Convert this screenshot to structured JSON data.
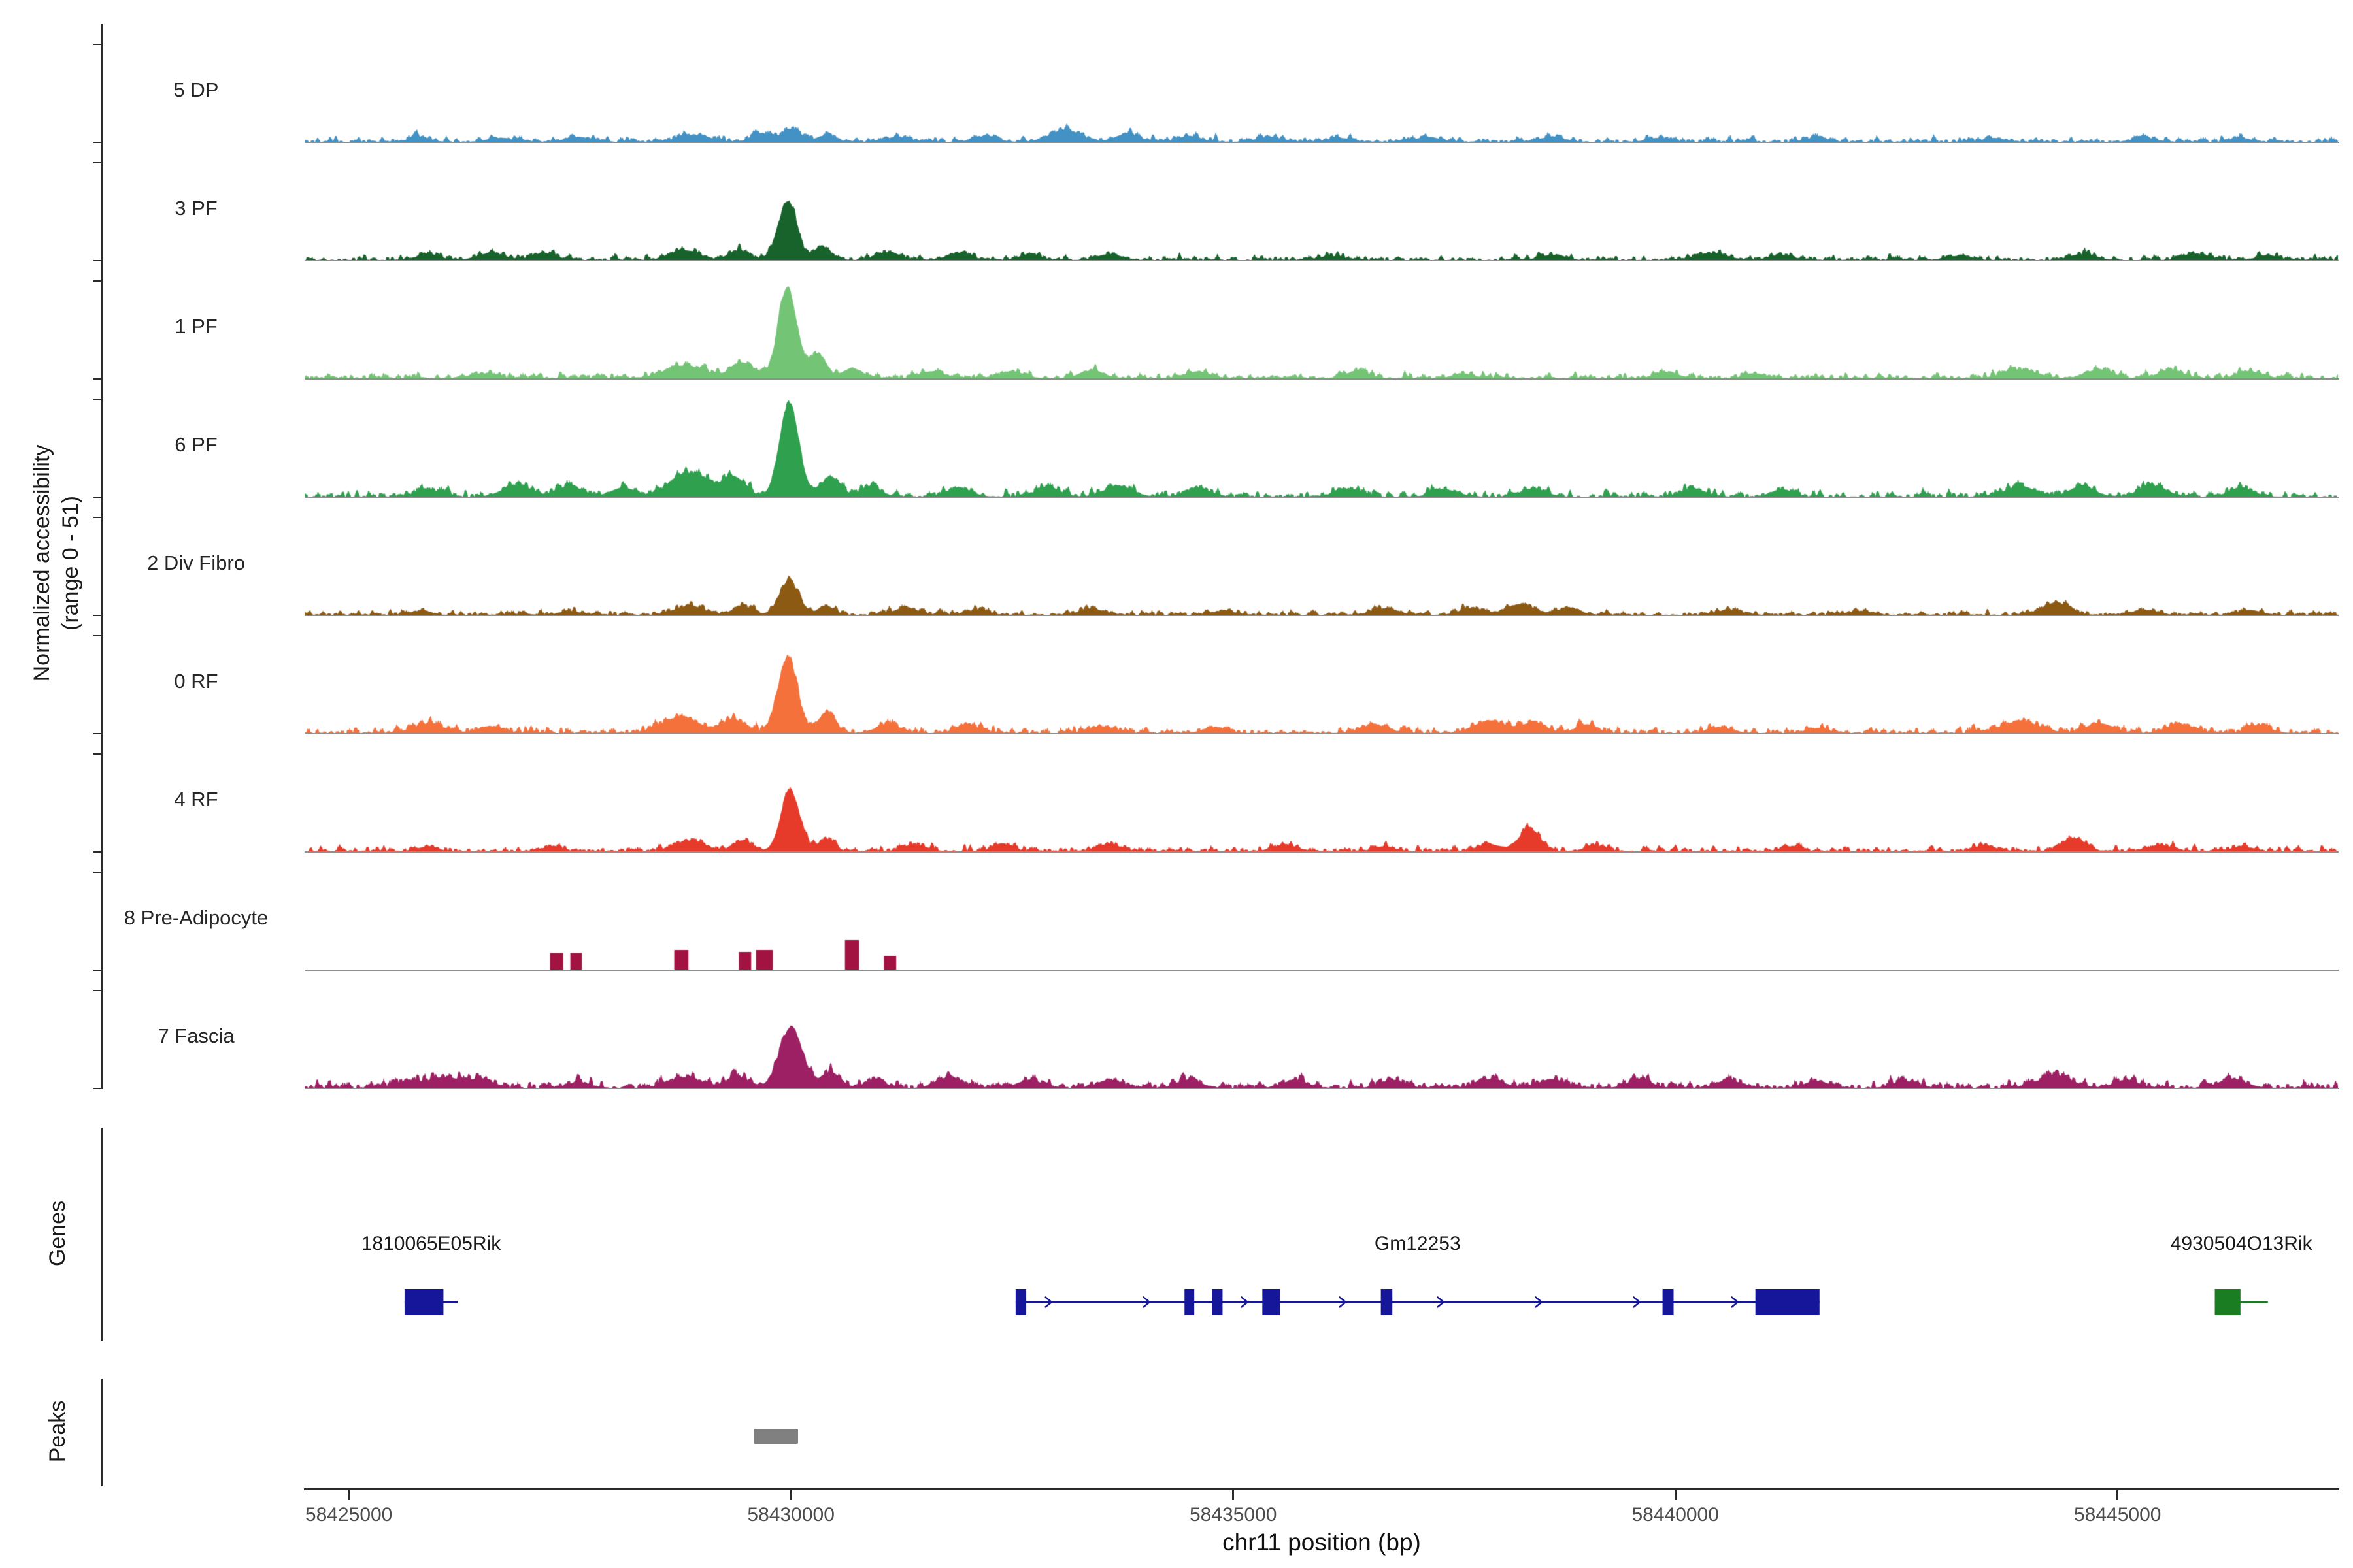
{
  "figure": {
    "y_axis_title_line1": "Normalized accessibility",
    "y_axis_title_line2": "(range 0 - 51)",
    "genes_section_label": "Genes",
    "peaks_section_label": "Peaks",
    "x_axis_title": "chr11 position (bp)"
  },
  "chart_data": {
    "type": "area",
    "subtype": "genome-accessibility-tracks",
    "chromosome": "chr11",
    "value_range": [
      0,
      51
    ],
    "x_domain": [
      58424500,
      58447500
    ],
    "x_ticks": [
      58425000,
      58430000,
      58435000,
      58440000,
      58445000
    ],
    "x_tick_labels": [
      "58425000",
      "58430000",
      "58435000",
      "58440000",
      "58445000"
    ],
    "tracks": [
      {
        "label": "5 DP",
        "color": "#4292c6",
        "style": "area",
        "noise": 0.022,
        "peaks": [
          [
            58425800,
            250,
            0.05
          ],
          [
            58426700,
            300,
            0.04
          ],
          [
            58427600,
            300,
            0.05
          ],
          [
            58428900,
            400,
            0.07
          ],
          [
            58429650,
            220,
            0.09
          ],
          [
            58430000,
            240,
            0.13
          ],
          [
            58430400,
            200,
            0.07
          ],
          [
            58431200,
            300,
            0.05
          ],
          [
            58432200,
            280,
            0.06
          ],
          [
            58433100,
            380,
            0.12
          ],
          [
            58433800,
            300,
            0.08
          ],
          [
            58434500,
            260,
            0.06
          ],
          [
            58435400,
            300,
            0.05
          ],
          [
            58436200,
            260,
            0.04
          ],
          [
            58437200,
            300,
            0.05
          ],
          [
            58438600,
            300,
            0.05
          ],
          [
            58439800,
            260,
            0.04
          ],
          [
            58441600,
            280,
            0.04
          ],
          [
            58443600,
            260,
            0.04
          ],
          [
            58445300,
            260,
            0.04
          ],
          [
            58446400,
            220,
            0.04
          ]
        ]
      },
      {
        "label": "3 PF",
        "color": "#17632b",
        "style": "area",
        "noise": 0.022,
        "peaks": [
          [
            58425900,
            280,
            0.06
          ],
          [
            58426600,
            320,
            0.07
          ],
          [
            58427200,
            300,
            0.07
          ],
          [
            58428800,
            350,
            0.1
          ],
          [
            58429400,
            240,
            0.1
          ],
          [
            58429960,
            230,
            0.6
          ],
          [
            58430350,
            200,
            0.14
          ],
          [
            58431100,
            300,
            0.08
          ],
          [
            58431900,
            300,
            0.07
          ],
          [
            58432700,
            260,
            0.06
          ],
          [
            58433600,
            300,
            0.06
          ],
          [
            58436100,
            300,
            0.04
          ],
          [
            58438600,
            300,
            0.05
          ],
          [
            58440400,
            400,
            0.07
          ],
          [
            58441200,
            300,
            0.05
          ],
          [
            58443200,
            300,
            0.04
          ],
          [
            58444600,
            320,
            0.06
          ],
          [
            58445900,
            320,
            0.06
          ],
          [
            58446700,
            260,
            0.05
          ]
        ]
      },
      {
        "label": "1 PF",
        "color": "#74c476",
        "style": "area",
        "noise": 0.024,
        "peaks": [
          [
            58426500,
            300,
            0.05
          ],
          [
            58428800,
            500,
            0.13
          ],
          [
            58429450,
            280,
            0.16
          ],
          [
            58429960,
            230,
            0.93
          ],
          [
            58430300,
            200,
            0.25
          ],
          [
            58430700,
            240,
            0.1
          ],
          [
            58431600,
            300,
            0.07
          ],
          [
            58432500,
            300,
            0.07
          ],
          [
            58433400,
            300,
            0.08
          ],
          [
            58434600,
            300,
            0.07
          ],
          [
            58436400,
            300,
            0.07
          ],
          [
            58437600,
            260,
            0.05
          ],
          [
            58439900,
            300,
            0.06
          ],
          [
            58440900,
            260,
            0.05
          ],
          [
            58443900,
            400,
            0.09
          ],
          [
            58444800,
            320,
            0.09
          ],
          [
            58445600,
            320,
            0.08
          ],
          [
            58446500,
            300,
            0.07
          ]
        ]
      },
      {
        "label": "6 PF",
        "color": "#2ea04e",
        "style": "area",
        "noise": 0.028,
        "peaks": [
          [
            58425900,
            300,
            0.07
          ],
          [
            58426900,
            350,
            0.12
          ],
          [
            58427500,
            300,
            0.11
          ],
          [
            58428100,
            300,
            0.09
          ],
          [
            58428850,
            450,
            0.24
          ],
          [
            58429350,
            280,
            0.2
          ],
          [
            58429980,
            240,
            0.96
          ],
          [
            58430450,
            240,
            0.2
          ],
          [
            58430900,
            240,
            0.11
          ],
          [
            58431900,
            300,
            0.09
          ],
          [
            58432900,
            300,
            0.09
          ],
          [
            58433700,
            340,
            0.11
          ],
          [
            58434600,
            300,
            0.09
          ],
          [
            58436300,
            300,
            0.08
          ],
          [
            58437400,
            300,
            0.07
          ],
          [
            58438400,
            300,
            0.08
          ],
          [
            58440200,
            300,
            0.08
          ],
          [
            58441200,
            260,
            0.07
          ],
          [
            58443900,
            340,
            0.11
          ],
          [
            58444600,
            300,
            0.11
          ],
          [
            58445400,
            340,
            0.11
          ],
          [
            58446400,
            300,
            0.09
          ]
        ]
      },
      {
        "label": "2 Div Fibro",
        "color": "#8d5a13",
        "style": "area",
        "noise": 0.02,
        "peaks": [
          [
            58425800,
            240,
            0.04
          ],
          [
            58427500,
            240,
            0.04
          ],
          [
            58428850,
            340,
            0.09
          ],
          [
            58429450,
            240,
            0.09
          ],
          [
            58429980,
            240,
            0.34
          ],
          [
            58430400,
            200,
            0.09
          ],
          [
            58431300,
            300,
            0.07
          ],
          [
            58432100,
            260,
            0.05
          ],
          [
            58433400,
            300,
            0.06
          ],
          [
            58434900,
            260,
            0.04
          ],
          [
            58436700,
            300,
            0.06
          ],
          [
            58437700,
            300,
            0.07
          ],
          [
            58438250,
            340,
            0.11
          ],
          [
            58438800,
            260,
            0.07
          ],
          [
            58440600,
            300,
            0.05
          ],
          [
            58442100,
            260,
            0.04
          ],
          [
            58444300,
            340,
            0.12
          ],
          [
            58445300,
            300,
            0.05
          ],
          [
            58446500,
            260,
            0.05
          ]
        ]
      },
      {
        "label": "0 RF",
        "color": "#f4713c",
        "style": "area",
        "noise": 0.028,
        "peaks": [
          [
            58425900,
            400,
            0.09
          ],
          [
            58426600,
            300,
            0.07
          ],
          [
            58428750,
            480,
            0.16
          ],
          [
            58429350,
            280,
            0.14
          ],
          [
            58429960,
            240,
            0.75
          ],
          [
            58430400,
            220,
            0.2
          ],
          [
            58431100,
            300,
            0.09
          ],
          [
            58432000,
            300,
            0.08
          ],
          [
            58433500,
            300,
            0.07
          ],
          [
            58434800,
            300,
            0.06
          ],
          [
            58436600,
            340,
            0.08
          ],
          [
            58437900,
            380,
            0.13
          ],
          [
            58438400,
            300,
            0.11
          ],
          [
            58439000,
            260,
            0.09
          ],
          [
            58440500,
            300,
            0.06
          ],
          [
            58441600,
            260,
            0.05
          ],
          [
            58443900,
            480,
            0.12
          ],
          [
            58444800,
            340,
            0.1
          ],
          [
            58445700,
            340,
            0.09
          ],
          [
            58446600,
            300,
            0.07
          ]
        ]
      },
      {
        "label": "4 RF",
        "color": "#e63b2a",
        "style": "area",
        "noise": 0.023,
        "peaks": [
          [
            58425900,
            240,
            0.05
          ],
          [
            58427300,
            240,
            0.05
          ],
          [
            58428850,
            380,
            0.11
          ],
          [
            58429450,
            240,
            0.11
          ],
          [
            58429990,
            230,
            0.62
          ],
          [
            58430400,
            200,
            0.13
          ],
          [
            58431400,
            300,
            0.07
          ],
          [
            58432400,
            260,
            0.06
          ],
          [
            58433600,
            300,
            0.07
          ],
          [
            58435600,
            300,
            0.06
          ],
          [
            58436700,
            260,
            0.05
          ],
          [
            58437900,
            300,
            0.07
          ],
          [
            58438350,
            260,
            0.23
          ],
          [
            58439100,
            260,
            0.06
          ],
          [
            58441300,
            260,
            0.05
          ],
          [
            58443500,
            260,
            0.06
          ],
          [
            58444500,
            300,
            0.12
          ],
          [
            58445500,
            300,
            0.06
          ],
          [
            58446400,
            260,
            0.05
          ]
        ]
      },
      {
        "label": "8 Pre-Adipocyte",
        "color": "#a31342",
        "style": "blocks",
        "noise": 0,
        "blocks": [
          [
            58427350,
            150,
            0.17
          ],
          [
            58427570,
            130,
            0.17
          ],
          [
            58428760,
            160,
            0.2
          ],
          [
            58429480,
            140,
            0.18
          ],
          [
            58429700,
            190,
            0.2
          ],
          [
            58430690,
            160,
            0.3
          ],
          [
            58431120,
            140,
            0.14
          ]
        ]
      },
      {
        "label": "7 Fascia",
        "color": "#9d2064",
        "style": "area",
        "noise": 0.032,
        "peaks": [
          [
            58425700,
            300,
            0.07
          ],
          [
            58426100,
            340,
            0.11
          ],
          [
            58426500,
            300,
            0.09
          ],
          [
            58427600,
            260,
            0.06
          ],
          [
            58428800,
            400,
            0.11
          ],
          [
            58429400,
            300,
            0.11
          ],
          [
            58430000,
            280,
            0.62
          ],
          [
            58430450,
            240,
            0.16
          ],
          [
            58430950,
            240,
            0.09
          ],
          [
            58431800,
            300,
            0.11
          ],
          [
            58432700,
            300,
            0.08
          ],
          [
            58433600,
            300,
            0.08
          ],
          [
            58434500,
            300,
            0.08
          ],
          [
            58435700,
            300,
            0.08
          ],
          [
            58436800,
            300,
            0.08
          ],
          [
            58437900,
            340,
            0.09
          ],
          [
            58438600,
            300,
            0.09
          ],
          [
            58439600,
            300,
            0.08
          ],
          [
            58440600,
            300,
            0.08
          ],
          [
            58441600,
            300,
            0.07
          ],
          [
            58442600,
            300,
            0.07
          ],
          [
            58444300,
            400,
            0.13
          ],
          [
            58445100,
            300,
            0.08
          ],
          [
            58446300,
            340,
            0.09
          ]
        ]
      }
    ],
    "genes": [
      {
        "name": "1810065E05Rik",
        "color": "#16169a",
        "strand": "+",
        "start": 58425630,
        "end": 58426230,
        "exons": [
          [
            58425630,
            58426070
          ]
        ]
      },
      {
        "name": "Gm12253",
        "color": "#16169a",
        "strand": "+",
        "start": 58432540,
        "end": 58441630,
        "exons": [
          [
            58432540,
            58432660
          ],
          [
            58434450,
            58434560
          ],
          [
            58434760,
            58434880
          ],
          [
            58435330,
            58435530
          ],
          [
            58436670,
            58436800
          ],
          [
            58439855,
            58439980
          ],
          [
            58440905,
            58441630
          ]
        ]
      },
      {
        "name": "4930504O13Rik",
        "color": "#1b7d22",
        "strand": "+",
        "start": 58446100,
        "end": 58446700,
        "exons": [
          [
            58446100,
            58446390
          ]
        ]
      }
    ],
    "peak_regions": [
      {
        "start": 58429580,
        "end": 58430080,
        "color": "#808080"
      }
    ]
  }
}
